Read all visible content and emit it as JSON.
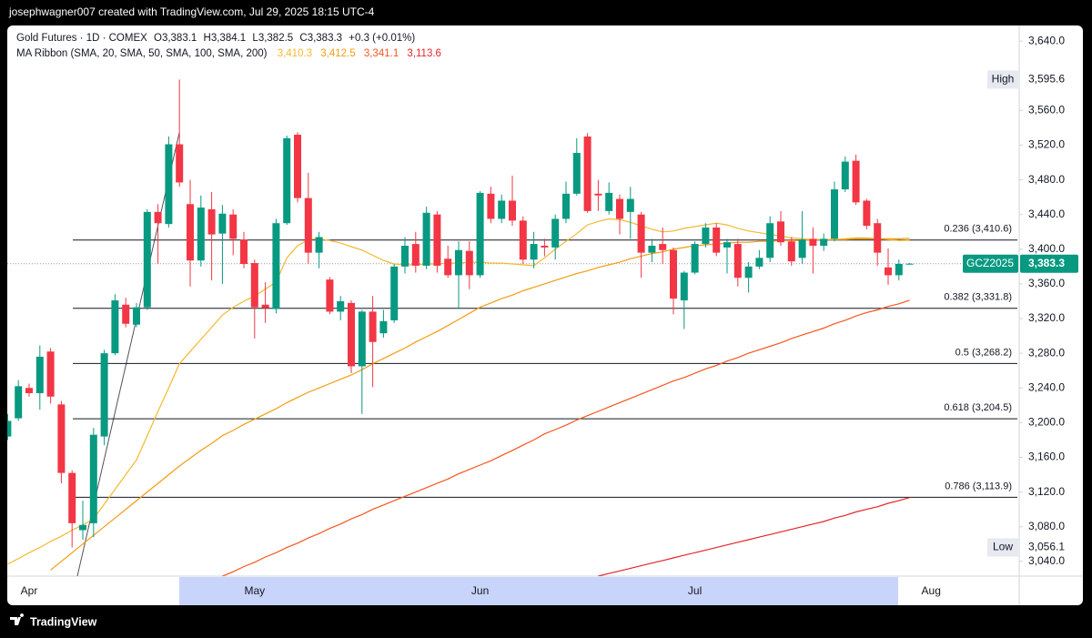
{
  "header": {
    "credit": "josephwagner007 created with TradingView.com, Jul 29, 2025 18:15 UTC-4"
  },
  "footer": {
    "brand": "TradingView"
  },
  "chart_data": {
    "type": "candlestick",
    "symbol": "Gold Futures · 1D · COMEX",
    "ohlc": [
      "O3,383.1",
      "H3,384.1",
      "L3,382.5",
      "C3,383.3"
    ],
    "change": "+0.3 (+0.01%)",
    "ribbon_title": "MA Ribbon (SMA, 20, SMA, 50, SMA, 100, SMA, 200)",
    "up_color": "#089981",
    "down_color": "#f23645",
    "grid": false,
    "categories": [
      null,
      null,
      "Apr",
      null,
      null,
      null,
      null,
      null,
      null,
      null,
      null,
      null,
      null,
      null,
      null,
      null,
      null,
      null,
      null,
      null,
      null,
      null,
      null,
      "May",
      null,
      null,
      null,
      null,
      null,
      null,
      null,
      null,
      null,
      null,
      null,
      null,
      null,
      null,
      null,
      null,
      null,
      null,
      null,
      null,
      "Jun",
      null,
      null,
      null,
      null,
      null,
      null,
      null,
      null,
      null,
      null,
      null,
      null,
      null,
      null,
      null,
      null,
      null,
      null,
      null,
      "Jul",
      null,
      null,
      null,
      null,
      null,
      null,
      null,
      null,
      null,
      null,
      null,
      null,
      null,
      null,
      null,
      null,
      null,
      null,
      null,
      null,
      null,
      "Aug"
    ],
    "open": [
      3184,
      3205,
      3240,
      3234,
      3282,
      3221,
      3142,
      3076,
      3084,
      3184,
      3280,
      3336,
      3313,
      3333,
      3443,
      3429,
      3521,
      3452,
      3387,
      3446,
      3418,
      3440,
      3411,
      3384,
      3336,
      3331,
      3430,
      3532,
      3459,
      3396,
      3365,
      3328,
      3338,
      3265,
      3328,
      3303,
      3318,
      3380,
      3406,
      3381,
      3440,
      3389,
      3370,
      3398,
      3370,
      3464,
      3435,
      3456,
      3433,
      3388,
      3404,
      3402,
      3435,
      3464,
      3530,
      3464,
      3444,
      3458,
      3443,
      3440,
      3396,
      3406,
      3399,
      3341,
      3373,
      3406,
      3425,
      3402,
      3406,
      3367,
      3380,
      3390,
      3432,
      3409,
      3390,
      3412,
      3404,
      3412,
      3469,
      3502,
      3456,
      3430,
      3379,
      3370,
      3383.1,
      null,
      null
    ],
    "high": [
      3210,
      3249,
      3245,
      3289,
      3286,
      3225,
      3145,
      3110,
      3194,
      3284,
      3348,
      3344,
      3338,
      3446,
      3452,
      3530,
      3595.6,
      3480,
      3462,
      3466,
      3451,
      3446,
      3420,
      3388,
      3362,
      3435,
      3531,
      3535,
      3488,
      3420,
      3368,
      3346,
      3341,
      3330,
      3346,
      3330,
      3383,
      3414,
      3420,
      3449,
      3444,
      3404,
      3409,
      3409,
      3467,
      3472,
      3463,
      3485,
      3438,
      3420,
      3412,
      3440,
      3478,
      3528,
      3534,
      3480,
      3477,
      3463,
      3472,
      3443,
      3412,
      3425,
      3402,
      3375,
      3409,
      3430,
      3430,
      3412,
      3412,
      3385,
      3399,
      3438,
      3444,
      3414,
      3444,
      3425,
      3418,
      3478,
      3507,
      3509,
      3458,
      3435,
      3401,
      3388,
      3384.1,
      null,
      null
    ],
    "low": [
      3180,
      3202,
      3230,
      3215,
      3222,
      3130,
      3056.1,
      3065,
      3068,
      3174,
      3278,
      3310,
      3310,
      3330,
      3383,
      3425,
      3472,
      3357,
      3380,
      3364,
      3360,
      3393,
      3378,
      3297,
      3315,
      3326,
      3428,
      3454,
      3383,
      3378,
      3325,
      3318,
      3257,
      3210,
      3241,
      3298,
      3315,
      3372,
      3373,
      3377,
      3373,
      3367,
      3331,
      3354,
      3367,
      3430,
      3430,
      3427,
      3383,
      3378,
      3392,
      3388,
      3430,
      3462,
      3442,
      3444,
      3440,
      3417,
      3412,
      3367,
      3385,
      3383,
      3325,
      3308,
      3371,
      3402,
      3392,
      3372,
      3357,
      3350,
      3377,
      3385,
      3404,
      3381,
      3383,
      3372,
      3398,
      3409,
      3466,
      3451,
      3423,
      3381,
      3359,
      3364,
      3382.5,
      null,
      null
    ],
    "close": [
      3202,
      3242,
      3234,
      3276,
      3230,
      3142,
      3084,
      3082,
      3186,
      3280,
      3341,
      3314,
      3333,
      3443,
      3430,
      3521,
      3477,
      3387,
      3448,
      3417,
      3441,
      3412,
      3383,
      3333,
      3332,
      3430,
      3528,
      3459,
      3396,
      3414,
      3328,
      3340,
      3265,
      3328,
      3293,
      3317,
      3380,
      3404,
      3381,
      3442,
      3381,
      3370,
      3399,
      3370,
      3465,
      3435,
      3456,
      3433,
      3388,
      3406,
      3402,
      3435,
      3464,
      3511,
      3444,
      3462,
      3465,
      3435,
      3458,
      3396,
      3404,
      3399,
      3343,
      3373,
      3406,
      3425,
      3396,
      3408,
      3367,
      3380,
      3390,
      3430,
      3408,
      3386,
      3411,
      3404,
      3412,
      3469,
      3501,
      3454,
      3427,
      3396,
      3370,
      3383,
      3383.3,
      null,
      null
    ],
    "series": [
      {
        "legend_label": "3,410.3",
        "color": "#f5b82e",
        "values": [
          3037,
          3043,
          3050,
          3056,
          3063,
          3069,
          3076,
          3082,
          3089,
          3106,
          3123,
          3140,
          3157,
          3185,
          3213,
          3240,
          3268,
          3282,
          3296,
          3310,
          3324,
          3333,
          3340,
          3346,
          3354,
          3362,
          3390,
          3404,
          3411,
          3412,
          3410,
          3407,
          3403,
          3399,
          3393,
          3387,
          3383,
          3382,
          3382,
          3383,
          3383,
          3384,
          3384,
          3385,
          3385,
          3384,
          3384,
          3383,
          3382,
          3381,
          3390,
          3400,
          3409,
          3418,
          3428,
          3432,
          3435,
          3434,
          3431,
          3427,
          3423,
          3420,
          3421,
          3424,
          3426,
          3428,
          3430,
          3428,
          3424,
          3421,
          3419,
          3417,
          3415,
          3413,
          3412,
          3411,
          3411,
          3411,
          3412,
          3413,
          3413,
          3412,
          3411,
          3410,
          3410.3,
          null,
          null
        ]
      },
      {
        "legend_label": "3,412.5",
        "color": "#f39c12",
        "values": [
          null,
          null,
          null,
          null,
          3030,
          3040,
          3050,
          3060,
          3070,
          3080,
          3090,
          3100,
          3110,
          3120,
          3130,
          3140,
          3150,
          3159,
          3168,
          3176,
          3185,
          3191,
          3198,
          3204,
          3210,
          3216,
          3223,
          3229,
          3235,
          3240,
          3245,
          3250,
          3255,
          3261,
          3268,
          3274,
          3280,
          3286,
          3293,
          3299,
          3305,
          3312,
          3319,
          3326,
          3333,
          3338,
          3343,
          3347,
          3352,
          3356,
          3360,
          3364,
          3368,
          3372,
          3375,
          3379,
          3382,
          3385,
          3389,
          3392,
          3395,
          3397,
          3400,
          3402,
          3404,
          3405,
          3406,
          3407,
          3408,
          3408,
          3409,
          3409,
          3410,
          3410,
          3410,
          3411,
          3411,
          3411,
          3411,
          3412,
          3412,
          3412,
          3412,
          3412,
          3412.5,
          null,
          null
        ]
      },
      {
        "legend_label": "3,341.1",
        "color": "#f4571d",
        "values": [
          null,
          null,
          null,
          null,
          null,
          null,
          null,
          null,
          null,
          null,
          null,
          null,
          null,
          null,
          null,
          null,
          null,
          null,
          null,
          null,
          3023,
          3028,
          3034,
          3039,
          3045,
          3050,
          3056,
          3061,
          3067,
          3072,
          3078,
          3083,
          3089,
          3094,
          3100,
          3105,
          3110,
          3115,
          3120,
          3125,
          3130,
          3135,
          3141,
          3146,
          3151,
          3156,
          3162,
          3168,
          3174,
          3180,
          3187,
          3192,
          3197,
          3203,
          3208,
          3213,
          3218,
          3223,
          3228,
          3233,
          3238,
          3243,
          3248,
          3252,
          3257,
          3262,
          3266,
          3271,
          3275,
          3280,
          3284,
          3288,
          3292,
          3297,
          3301,
          3305,
          3309,
          3314,
          3318,
          3323,
          3327,
          3330,
          3334,
          3337,
          3341.1,
          null,
          null
        ]
      },
      {
        "legend_label": "3,113.6",
        "color": "#e3262b",
        "values": [
          null,
          null,
          null,
          null,
          null,
          null,
          null,
          null,
          null,
          null,
          null,
          null,
          null,
          null,
          null,
          null,
          null,
          null,
          null,
          null,
          null,
          null,
          null,
          null,
          null,
          null,
          null,
          null,
          null,
          null,
          null,
          null,
          null,
          null,
          null,
          null,
          null,
          null,
          null,
          null,
          null,
          null,
          null,
          null,
          null,
          null,
          null,
          null,
          null,
          null,
          null,
          null,
          null,
          null,
          null,
          3023,
          3026,
          3029,
          3032,
          3035,
          3038,
          3041,
          3044,
          3047,
          3050,
          3053,
          3056,
          3059,
          3062,
          3065,
          3068,
          3071,
          3074,
          3077,
          3080,
          3083,
          3086,
          3090,
          3093,
          3097,
          3100,
          3103,
          3107,
          3110,
          3113.6,
          null,
          null
        ]
      }
    ],
    "ylim": [
      3023,
      3658
    ],
    "yticks": [
      {
        "value": 3040,
        "label": "3,040.0"
      },
      {
        "value": 3080,
        "label": "3,080.0"
      },
      {
        "value": 3120,
        "label": "3,120.0"
      },
      {
        "value": 3160,
        "label": "3,160.0"
      },
      {
        "value": 3200,
        "label": "3,200.0"
      },
      {
        "value": 3240,
        "label": "3,240.0"
      },
      {
        "value": 3280,
        "label": "3,280.0"
      },
      {
        "value": 3320,
        "label": "3,320.0"
      },
      {
        "value": 3360,
        "label": "3,360.0"
      },
      {
        "value": 3400,
        "label": "3,400.0"
      },
      {
        "value": 3440,
        "label": "3,440.0"
      },
      {
        "value": 3480,
        "label": "3,480.0"
      },
      {
        "value": 3520,
        "label": "3,520.0"
      },
      {
        "value": 3560,
        "label": "3,560.0"
      },
      {
        "value": 3640,
        "label": "3,640.0"
      }
    ],
    "fib_levels": [
      {
        "value": 3410.6,
        "label": "0.236 (3,410.6)"
      },
      {
        "value": 3331.8,
        "label": "0.382 (3,331.8)"
      },
      {
        "value": 3268.2,
        "label": "0.5 (3,268.2)"
      },
      {
        "value": 3204.5,
        "label": "0.618 (3,204.5)"
      },
      {
        "value": 3113.9,
        "label": "0.786 (3,113.9)"
      }
    ],
    "extremes": [
      {
        "label": "High",
        "value": 3595.6,
        "value_label": "3,595.6"
      },
      {
        "label": "Low",
        "value": 3056.1,
        "value_label": "3,056.1"
      }
    ],
    "last_price": {
      "symbol": "GCZ2025",
      "value": 3383.3,
      "value_label": "3,383.3",
      "color": "#089981"
    }
  }
}
